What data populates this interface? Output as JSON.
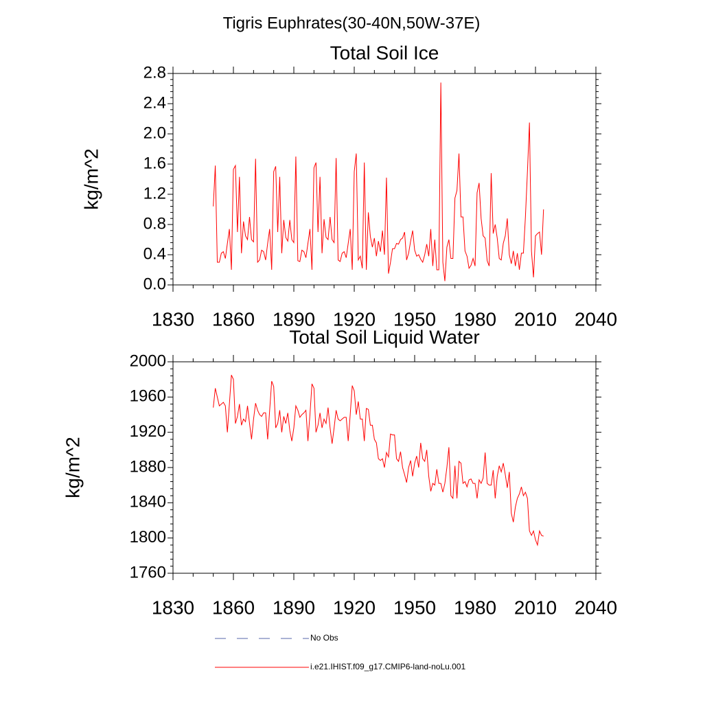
{
  "title": "Tigris Euphrates(30-40N,50W-37E)",
  "legend": [
    {
      "name": "No Obs",
      "color": "#5566aa",
      "dashed": true
    },
    {
      "name": "i.e21.IHIST.f09_g17.CMIP6-land-noLu.001",
      "color": "#ff0000",
      "dashed": false
    }
  ],
  "chart_data": [
    {
      "type": "line",
      "title": "Total Soil Ice",
      "y_label": "kg/m^2",
      "xlim": [
        1830,
        2040
      ],
      "xticks": [
        1830,
        1860,
        1890,
        1920,
        1950,
        1980,
        2010,
        2040
      ],
      "ylim": [
        0,
        2.8
      ],
      "yticks": [
        {
          "value": 0,
          "label": "0.0"
        },
        0.4,
        0.8,
        1.2,
        1.6,
        {
          "value": 2,
          "label": "2.0"
        },
        2.4,
        2.8
      ],
      "x": [
        1850,
        1851,
        1852,
        1853,
        1854,
        1855,
        1856,
        1857,
        1858,
        1859,
        1860,
        1861,
        1862,
        1863,
        1864,
        1865,
        1866,
        1867,
        1868,
        1869,
        1870,
        1871,
        1872,
        1873,
        1874,
        1875,
        1876,
        1877,
        1878,
        1879,
        1880,
        1881,
        1882,
        1883,
        1884,
        1885,
        1886,
        1887,
        1888,
        1889,
        1890,
        1891,
        1892,
        1893,
        1894,
        1895,
        1896,
        1897,
        1898,
        1899,
        1900,
        1901,
        1902,
        1903,
        1904,
        1905,
        1906,
        1907,
        1908,
        1909,
        1910,
        1911,
        1912,
        1913,
        1914,
        1915,
        1916,
        1917,
        1918,
        1919,
        1920,
        1921,
        1922,
        1923,
        1924,
        1925,
        1926,
        1927,
        1928,
        1929,
        1930,
        1931,
        1932,
        1933,
        1934,
        1935,
        1936,
        1937,
        1938,
        1939,
        1940,
        1941,
        1942,
        1943,
        1944,
        1945,
        1946,
        1947,
        1948,
        1949,
        1950,
        1951,
        1952,
        1953,
        1954,
        1955,
        1956,
        1957,
        1958,
        1959,
        1960,
        1961,
        1962,
        1963,
        1964,
        1965,
        1966,
        1967,
        1968,
        1969,
        1970,
        1971,
        1972,
        1973,
        1974,
        1975,
        1976,
        1977,
        1978,
        1979,
        1980,
        1981,
        1982,
        1983,
        1984,
        1985,
        1986,
        1987,
        1988,
        1989,
        1990,
        1991,
        1992,
        1993,
        1994,
        1995,
        1996,
        1997,
        1998,
        1999,
        2000,
        2001,
        2002,
        2003,
        2004,
        2005,
        2006,
        2007,
        2008,
        2009,
        2010,
        2011,
        2012,
        2013,
        2014
      ],
      "series": [
        {
          "color": "#ff0000",
          "values": [
            1.04,
            1.58,
            0.3,
            0.3,
            0.42,
            0.44,
            0.35,
            0.55,
            0.74,
            0.2,
            1.53,
            1.58,
            0.7,
            1.43,
            0.42,
            0.84,
            0.65,
            0.6,
            0.9,
            0.6,
            0.57,
            1.67,
            0.3,
            0.33,
            0.46,
            0.44,
            0.33,
            0.55,
            0.74,
            0.2,
            1.5,
            1.57,
            0.7,
            1.43,
            0.42,
            0.86,
            0.63,
            0.58,
            0.86,
            0.6,
            0.56,
            1.7,
            0.32,
            0.31,
            0.46,
            0.44,
            0.36,
            0.55,
            0.74,
            0.2,
            1.55,
            1.62,
            0.7,
            1.43,
            0.42,
            0.87,
            0.63,
            0.6,
            0.9,
            0.6,
            0.56,
            1.68,
            0.33,
            0.31,
            0.42,
            0.44,
            0.36,
            0.55,
            0.74,
            0.2,
            1.5,
            1.74,
            0.33,
            0.38,
            0.22,
            1.62,
            0.2,
            0.96,
            0.64,
            0.5,
            0.62,
            0.38,
            0.58,
            0.44,
            0.72,
            0.4,
            1.42,
            0.15,
            0.3,
            0.48,
            0.48,
            0.55,
            0.54,
            0.6,
            0.62,
            0.7,
            0.33,
            0.42,
            0.58,
            0.72,
            0.46,
            0.38,
            0.4,
            0.34,
            0.3,
            0.4,
            0.54,
            0.38,
            0.74,
            0.25,
            0.6,
            0.2,
            0.2,
            2.68,
            0.3,
            0.05,
            0.5,
            0.6,
            0.35,
            0.35,
            1.15,
            1.25,
            1.74,
            0.9,
            0.9,
            0.45,
            0.38,
            0.22,
            0.26,
            0.35,
            0.25,
            1.22,
            1.35,
            0.88,
            0.65,
            0.62,
            0.32,
            0.25,
            1.48,
            0.68,
            0.8,
            0.62,
            0.35,
            0.33,
            0.55,
            0.65,
            0.88,
            0.4,
            0.28,
            0.45,
            0.25,
            0.42,
            0.2,
            0.42,
            0.42,
            0.9,
            1.5,
            2.15,
            0.45,
            0.1,
            0.65,
            0.68,
            0.7,
            0.4,
            1.0
          ]
        }
      ]
    },
    {
      "type": "line",
      "title": "Total Soil Liquid Water",
      "y_label": "kg/m^2",
      "xlim": [
        1830,
        2040
      ],
      "xticks": [
        1830,
        1860,
        1890,
        1920,
        1950,
        1980,
        2010,
        2040
      ],
      "ylim": [
        1760,
        2000
      ],
      "yticks": [
        1760,
        1800,
        1840,
        1880,
        1920,
        1960,
        2000
      ],
      "x": [
        1850,
        1851,
        1852,
        1853,
        1854,
        1855,
        1856,
        1857,
        1858,
        1859,
        1860,
        1861,
        1862,
        1863,
        1864,
        1865,
        1866,
        1867,
        1868,
        1869,
        1870,
        1871,
        1872,
        1873,
        1874,
        1875,
        1876,
        1877,
        1878,
        1879,
        1880,
        1881,
        1882,
        1883,
        1884,
        1885,
        1886,
        1887,
        1888,
        1889,
        1890,
        1891,
        1892,
        1893,
        1894,
        1895,
        1896,
        1897,
        1898,
        1899,
        1900,
        1901,
        1902,
        1903,
        1904,
        1905,
        1906,
        1907,
        1908,
        1909,
        1910,
        1911,
        1912,
        1913,
        1914,
        1915,
        1916,
        1917,
        1918,
        1919,
        1920,
        1921,
        1922,
        1923,
        1924,
        1925,
        1926,
        1927,
        1928,
        1929,
        1930,
        1931,
        1932,
        1933,
        1934,
        1935,
        1936,
        1937,
        1938,
        1939,
        1940,
        1941,
        1942,
        1943,
        1944,
        1945,
        1946,
        1947,
        1948,
        1949,
        1950,
        1951,
        1952,
        1953,
        1954,
        1955,
        1956,
        1957,
        1958,
        1959,
        1960,
        1961,
        1962,
        1963,
        1964,
        1965,
        1966,
        1967,
        1968,
        1969,
        1970,
        1971,
        1972,
        1973,
        1974,
        1975,
        1976,
        1977,
        1978,
        1979,
        1980,
        1981,
        1982,
        1983,
        1984,
        1985,
        1986,
        1987,
        1988,
        1989,
        1990,
        1991,
        1992,
        1993,
        1994,
        1995,
        1996,
        1997,
        1998,
        1999,
        2000,
        2001,
        2002,
        2003,
        2004,
        2005,
        2006,
        2007,
        2008,
        2009,
        2010,
        2011,
        2012,
        2013,
        2014
      ],
      "series": [
        {
          "color": "#ff0000",
          "values": [
            1948,
            1970,
            1960,
            1950,
            1952,
            1954,
            1950,
            1920,
            1952,
            1985,
            1980,
            1930,
            1938,
            1952,
            1928,
            1935,
            1932,
            1950,
            1930,
            1912,
            1935,
            1953,
            1945,
            1940,
            1938,
            1942,
            1942,
            1912,
            1945,
            1978,
            1972,
            1925,
            1930,
            1945,
            1920,
            1938,
            1930,
            1942,
            1922,
            1910,
            1925,
            1950,
            1945,
            1937,
            1940,
            1942,
            1945,
            1910,
            1940,
            1975,
            1970,
            1920,
            1928,
            1942,
            1925,
            1935,
            1930,
            1948,
            1925,
            1907,
            1925,
            1945,
            1935,
            1933,
            1935,
            1937,
            1937,
            1910,
            1940,
            1973,
            1967,
            1940,
            1955,
            1935,
            1935,
            1910,
            1947,
            1946,
            1928,
            1928,
            1912,
            1908,
            1890,
            1888,
            1890,
            1880,
            1897,
            1892,
            1918,
            1917,
            1917,
            1890,
            1887,
            1898,
            1880,
            1872,
            1863,
            1880,
            1888,
            1870,
            1885,
            1893,
            1880,
            1908,
            1890,
            1887,
            1900,
            1870,
            1853,
            1862,
            1860,
            1878,
            1862,
            1862,
            1852,
            1862,
            1880,
            1903,
            1848,
            1845,
            1882,
            1845,
            1887,
            1885,
            1862,
            1864,
            1858,
            1866,
            1867,
            1862,
            1862,
            1845,
            1866,
            1862,
            1868,
            1897,
            1862,
            1860,
            1860,
            1877,
            1845,
            1870,
            1882,
            1875,
            1885,
            1872,
            1857,
            1875,
            1828,
            1818,
            1835,
            1845,
            1850,
            1858,
            1848,
            1852,
            1845,
            1808,
            1803,
            1808,
            1798,
            1792,
            1808,
            1803,
            1802
          ]
        }
      ]
    }
  ]
}
